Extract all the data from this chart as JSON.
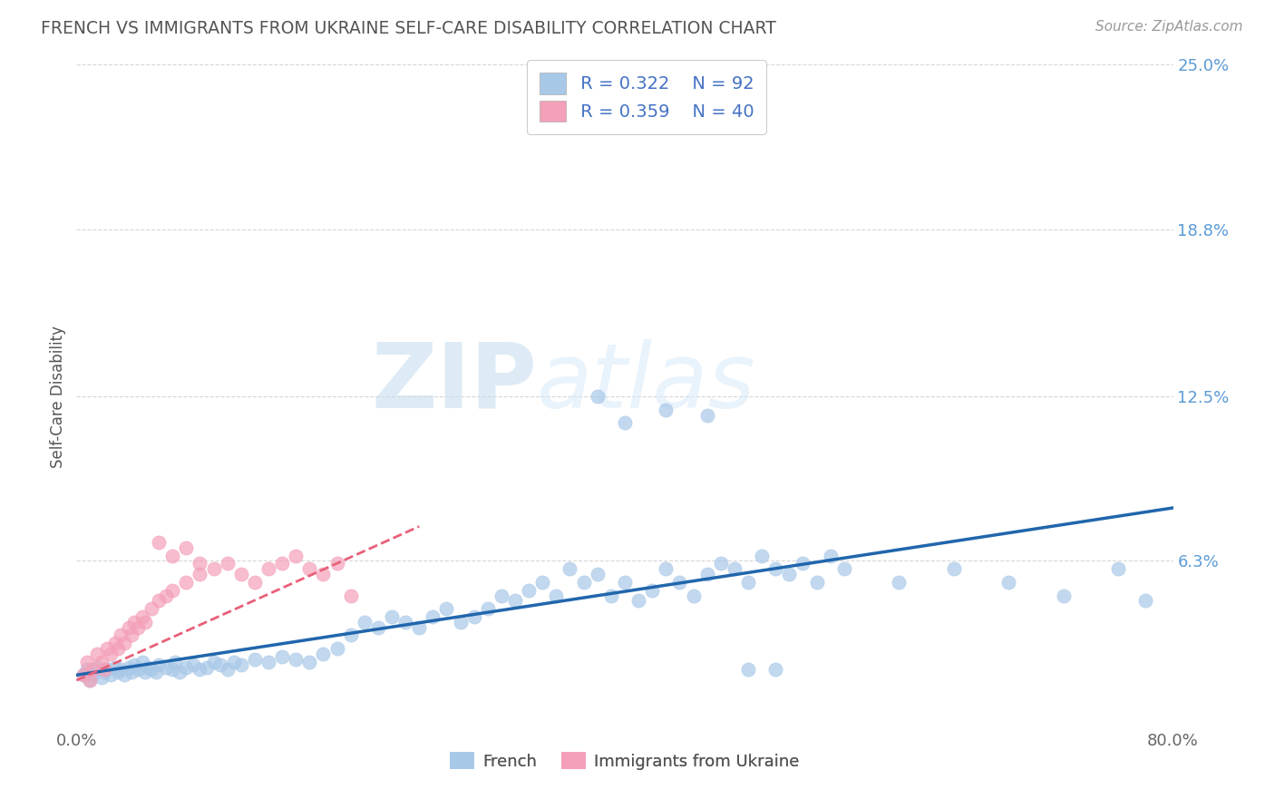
{
  "title": "FRENCH VS IMMIGRANTS FROM UKRAINE SELF-CARE DISABILITY CORRELATION CHART",
  "source": "Source: ZipAtlas.com",
  "ylabel": "Self-Care Disability",
  "xlim": [
    0.0,
    0.8
  ],
  "ylim": [
    0.0,
    0.25
  ],
  "ytick_vals": [
    0.0,
    0.063,
    0.125,
    0.188,
    0.25
  ],
  "ytick_labels": [
    "",
    "6.3%",
    "12.5%",
    "18.8%",
    "25.0%"
  ],
  "xticks": [
    0.0,
    0.1,
    0.2,
    0.3,
    0.4,
    0.5,
    0.6,
    0.7,
    0.8
  ],
  "xtick_labels": [
    "0.0%",
    "",
    "",
    "",
    "",
    "",
    "",
    "",
    "80.0%"
  ],
  "french_R": 0.322,
  "french_N": 92,
  "ukraine_R": 0.359,
  "ukraine_N": 40,
  "french_color": "#a8c8e8",
  "ukraine_color": "#f4a0b8",
  "french_line_color": "#2166ac",
  "ukraine_line_color": "#e8607a",
  "background_color": "#ffffff",
  "french_line_x0": 0.0,
  "french_line_y0": 0.02,
  "french_line_x1": 0.8,
  "french_line_y1": 0.083,
  "ukraine_line_x0": 0.0,
  "ukraine_line_y0": 0.018,
  "ukraine_line_x1": 0.25,
  "ukraine_line_y1": 0.076,
  "french_x": [
    0.005,
    0.008,
    0.01,
    0.012,
    0.015,
    0.018,
    0.02,
    0.022,
    0.025,
    0.028,
    0.03,
    0.032,
    0.035,
    0.038,
    0.04,
    0.042,
    0.045,
    0.048,
    0.05,
    0.052,
    0.055,
    0.058,
    0.06,
    0.065,
    0.07,
    0.072,
    0.075,
    0.08,
    0.085,
    0.09,
    0.095,
    0.1,
    0.105,
    0.11,
    0.115,
    0.12,
    0.13,
    0.14,
    0.15,
    0.16,
    0.17,
    0.18,
    0.19,
    0.2,
    0.21,
    0.22,
    0.23,
    0.24,
    0.25,
    0.26,
    0.27,
    0.28,
    0.29,
    0.3,
    0.31,
    0.32,
    0.33,
    0.34,
    0.35,
    0.36,
    0.37,
    0.38,
    0.39,
    0.4,
    0.41,
    0.42,
    0.43,
    0.44,
    0.45,
    0.46,
    0.47,
    0.48,
    0.49,
    0.5,
    0.51,
    0.52,
    0.53,
    0.54,
    0.55,
    0.56,
    0.6,
    0.64,
    0.68,
    0.72,
    0.76,
    0.78,
    0.38,
    0.4,
    0.43,
    0.46,
    0.49,
    0.51
  ],
  "french_y": [
    0.02,
    0.022,
    0.018,
    0.02,
    0.023,
    0.019,
    0.021,
    0.022,
    0.02,
    0.023,
    0.021,
    0.022,
    0.02,
    0.023,
    0.021,
    0.024,
    0.022,
    0.025,
    0.021,
    0.023,
    0.022,
    0.021,
    0.024,
    0.023,
    0.022,
    0.025,
    0.021,
    0.023,
    0.024,
    0.022,
    0.023,
    0.025,
    0.024,
    0.022,
    0.025,
    0.024,
    0.026,
    0.025,
    0.027,
    0.026,
    0.025,
    0.028,
    0.03,
    0.035,
    0.04,
    0.038,
    0.042,
    0.04,
    0.038,
    0.042,
    0.045,
    0.04,
    0.042,
    0.045,
    0.05,
    0.048,
    0.052,
    0.055,
    0.05,
    0.06,
    0.055,
    0.058,
    0.05,
    0.055,
    0.048,
    0.052,
    0.06,
    0.055,
    0.05,
    0.058,
    0.062,
    0.06,
    0.055,
    0.065,
    0.06,
    0.058,
    0.062,
    0.055,
    0.065,
    0.06,
    0.055,
    0.06,
    0.055,
    0.05,
    0.06,
    0.048,
    0.125,
    0.115,
    0.12,
    0.118,
    0.022,
    0.022
  ],
  "ukraine_x": [
    0.005,
    0.008,
    0.01,
    0.012,
    0.015,
    0.018,
    0.02,
    0.022,
    0.025,
    0.028,
    0.03,
    0.032,
    0.035,
    0.038,
    0.04,
    0.042,
    0.045,
    0.048,
    0.05,
    0.055,
    0.06,
    0.065,
    0.07,
    0.08,
    0.09,
    0.1,
    0.11,
    0.12,
    0.13,
    0.14,
    0.15,
    0.16,
    0.17,
    0.18,
    0.19,
    0.2,
    0.06,
    0.07,
    0.08,
    0.09
  ],
  "ukraine_y": [
    0.02,
    0.025,
    0.018,
    0.022,
    0.028,
    0.025,
    0.022,
    0.03,
    0.028,
    0.032,
    0.03,
    0.035,
    0.032,
    0.038,
    0.035,
    0.04,
    0.038,
    0.042,
    0.04,
    0.045,
    0.048,
    0.05,
    0.052,
    0.055,
    0.058,
    0.06,
    0.062,
    0.058,
    0.055,
    0.06,
    0.062,
    0.065,
    0.06,
    0.058,
    0.062,
    0.05,
    0.07,
    0.065,
    0.068,
    0.062
  ]
}
